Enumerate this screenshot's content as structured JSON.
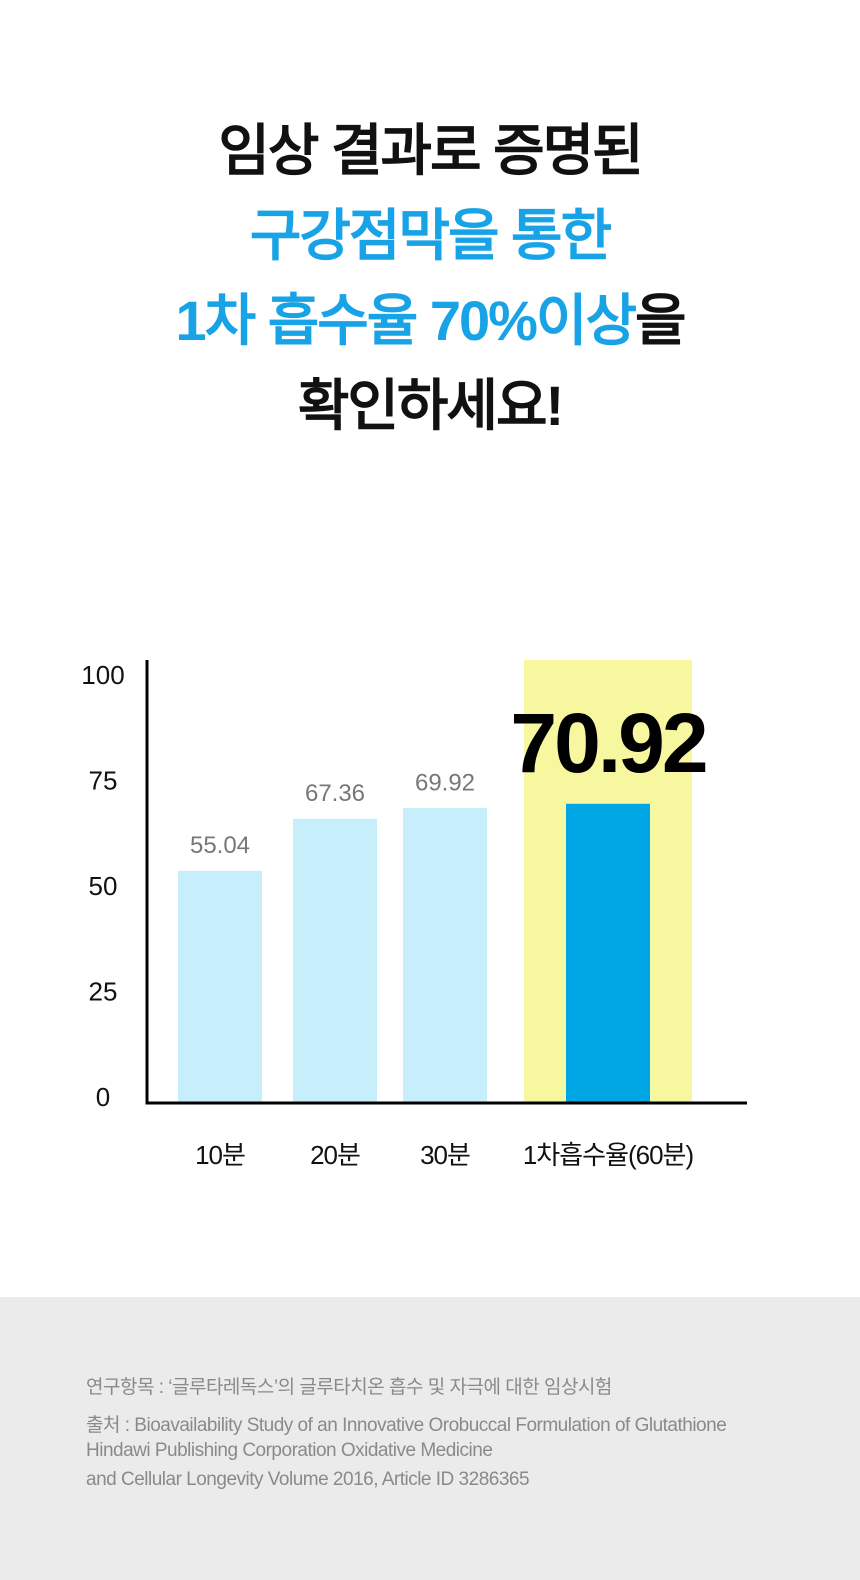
{
  "headline": {
    "line1": "임상 결과로 증명된",
    "line2": "구강점막을 통한",
    "line3_highlight": "1차 흡수율 70%이상",
    "line3_rest": "을",
    "line4": "확인하세요!"
  },
  "chart_data": {
    "type": "bar",
    "categories": [
      "10분",
      "20분",
      "30분",
      "1차흡수율(60분)"
    ],
    "values": [
      55.04,
      67.36,
      69.92,
      70.92
    ],
    "colors": [
      "#c6eefb",
      "#c6eefb",
      "#c6eefb",
      "#00a5e3"
    ],
    "highlight": [
      false,
      false,
      false,
      true
    ],
    "highlight_band_color": "#f7f7a0",
    "ylim": [
      0,
      105
    ],
    "yticks": [
      0,
      25,
      50,
      75,
      100
    ],
    "grid": false
  },
  "footer": [
    "연구항목 : ‘글루타레독스’의 글루타치온 흡수 및 자극에 대한 임상시험",
    "출처 : Bioavailability Study of an Innovative Orobuccal Formulation of Glutathione",
    "Hindawi Publishing Corporation Oxidative Medicine",
    "and Cellular Longevity Volume 2016, Article ID 3286365"
  ]
}
